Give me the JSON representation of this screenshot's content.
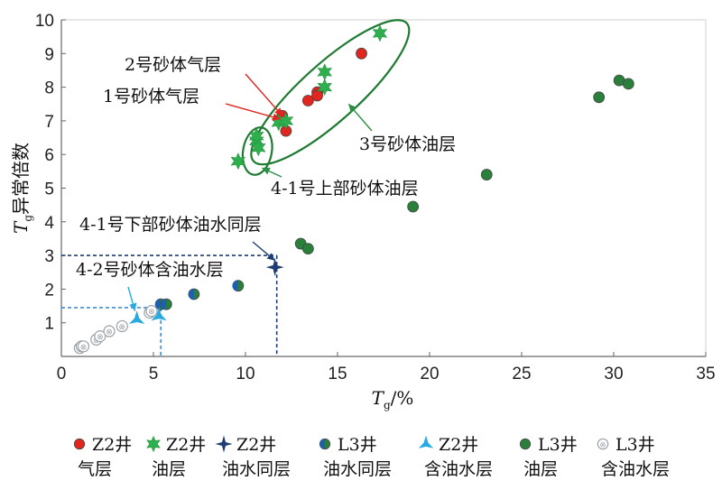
{
  "chart_data": {
    "type": "scatter",
    "xlabel": {
      "main": "T",
      "sub": "g",
      "rest": "/%"
    },
    "ylabel": {
      "main": "T",
      "sub": "g",
      "rest": "异常倍数"
    },
    "xlim": [
      0,
      35
    ],
    "ylim": [
      0,
      10
    ],
    "xticks": [
      "0",
      "5",
      "10",
      "15",
      "20",
      "25",
      "30",
      "35"
    ],
    "yticks": [
      "1",
      "2",
      "3",
      "4",
      "5",
      "6",
      "7",
      "8",
      "9",
      "10"
    ],
    "grid": false,
    "legend_position": "bottom",
    "series": [
      {
        "name": "Z2井 气层",
        "label1": "Z2井",
        "label2": "气层",
        "marker": "circle",
        "color": "#e0261f",
        "points": [
          [
            12.0,
            7.15
          ],
          [
            12.2,
            6.7
          ],
          [
            13.4,
            7.6
          ],
          [
            13.9,
            7.85
          ],
          [
            13.9,
            7.75
          ],
          [
            16.3,
            9.0
          ]
        ]
      },
      {
        "name": "Z2井 油层",
        "label1": "Z2井",
        "label2": "油层",
        "marker": "star6",
        "color": "#2fae4e",
        "points": [
          [
            9.6,
            5.8
          ],
          [
            10.6,
            6.4
          ],
          [
            10.6,
            6.55
          ],
          [
            10.7,
            6.2
          ],
          [
            11.8,
            6.95
          ],
          [
            12.2,
            7.0
          ],
          [
            14.3,
            8.45
          ],
          [
            14.3,
            8.0
          ],
          [
            17.3,
            9.6
          ]
        ]
      },
      {
        "name": "Z2井 油水同层",
        "label1": "Z2井",
        "label2": "油水同层",
        "marker": "star4",
        "color": "#1e3c73",
        "points": [
          [
            11.6,
            2.65
          ]
        ]
      },
      {
        "name": "L3井 油水同层",
        "label1": "L3井",
        "label2": "油水同层",
        "marker": "circle-blue-green",
        "color": "#1f6db5",
        "points": [
          [
            5.4,
            1.55
          ],
          [
            5.7,
            1.55
          ],
          [
            7.2,
            1.85
          ],
          [
            9.6,
            2.1
          ]
        ]
      },
      {
        "name": "Z2井 含油水层",
        "label1": "Z2井",
        "label2": "含油水层",
        "marker": "star3",
        "color": "#28a9e1",
        "points": [
          [
            4.1,
            1.1
          ],
          [
            5.3,
            1.2
          ]
        ]
      },
      {
        "name": "L3井 油层",
        "label1": "L3井",
        "label2": "油层",
        "marker": "circle",
        "color": "#2a7f3a",
        "points": [
          [
            13.0,
            3.35
          ],
          [
            13.4,
            3.2
          ],
          [
            19.1,
            4.45
          ],
          [
            23.1,
            5.4
          ],
          [
            29.2,
            7.7
          ],
          [
            30.3,
            8.2
          ],
          [
            30.8,
            8.1
          ]
        ]
      },
      {
        "name": "L3井 含油水层",
        "label1": "L3井",
        "label2": "含油水层",
        "marker": "circle-open",
        "color": "#9aa0a8",
        "points": [
          [
            1.0,
            0.25
          ],
          [
            1.1,
            0.3
          ],
          [
            1.2,
            0.3
          ],
          [
            1.9,
            0.5
          ],
          [
            2.1,
            0.6
          ],
          [
            2.6,
            0.75
          ],
          [
            3.3,
            0.9
          ],
          [
            4.8,
            1.3
          ],
          [
            4.9,
            1.35
          ]
        ]
      }
    ],
    "ellipses": [
      {
        "cx": 10.65,
        "cy": 6.1,
        "rx": 1.3,
        "ry": 0.78,
        "angle": -80
      },
      {
        "cx": 14.6,
        "cy": 7.85,
        "rx": 5.6,
        "ry": 1.55,
        "angle": -42
      }
    ],
    "dashed_lines": [
      {
        "x": 11.7,
        "y": 3.0,
        "color": "#1e3c73"
      },
      {
        "x": 5.4,
        "y": 1.45,
        "color": "#3e8fd6"
      }
    ],
    "annotations": [
      {
        "text": "2号砂体气层",
        "target": [
          12.0,
          7.15
        ]
      },
      {
        "text": "1号砂体气层",
        "target": [
          11.9,
          7.05
        ]
      },
      {
        "text": "3号砂体油层",
        "target": [
          15.6,
          7.5
        ]
      },
      {
        "text": "4-1号上部砂体油层",
        "target": [
          10.9,
          5.6
        ]
      },
      {
        "text": "4-1号下部砂体油水同层",
        "target": [
          11.6,
          2.85
        ]
      },
      {
        "text": "4-2号砂体含油水层",
        "target": [
          4.0,
          1.35
        ]
      }
    ]
  }
}
